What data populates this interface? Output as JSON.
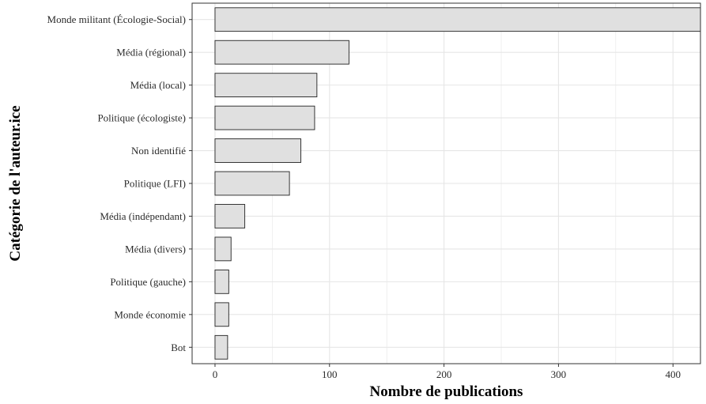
{
  "chart_data": {
    "type": "bar",
    "orientation": "horizontal",
    "xlabel": "Nombre de publications",
    "ylabel": "Catégorie de l'auteur.ice",
    "categories": [
      "Monde militant (Écologie-Social)",
      "Média (régional)",
      "Média (local)",
      "Politique (écologiste)",
      "Non identifié",
      "Politique (LFI)",
      "Média (indépendant)",
      "Média (divers)",
      "Politique (gauche)",
      "Monde économie",
      "Bot"
    ],
    "values": [
      424,
      117,
      89,
      87,
      75,
      65,
      26,
      14,
      12,
      12,
      11
    ],
    "xlim": [
      -20,
      424
    ],
    "xticks": [
      0,
      100,
      200,
      300,
      400
    ],
    "grid": true,
    "bar_color": "#e0e0e0",
    "bar_edge_color": "#222222",
    "grid_color": "#e6e6e6"
  }
}
